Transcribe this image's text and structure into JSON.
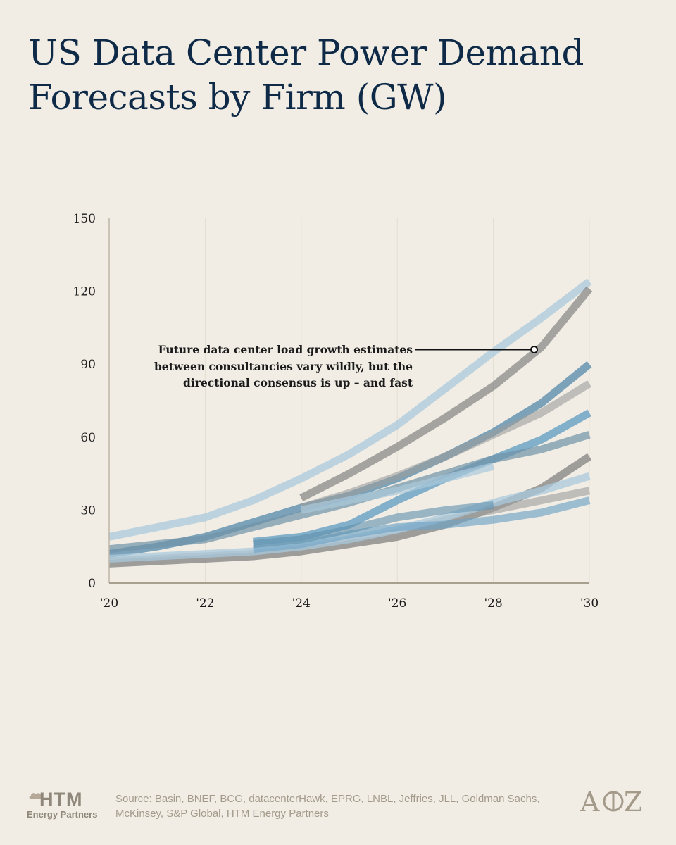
{
  "title": "US Data Center Power Demand Forecasts by Firm (GW)",
  "annotation": [
    "Future data center load growth estimates",
    "between consultancies vary wildly, but the",
    "directional consensus is up – and fast"
  ],
  "footer": {
    "source": "Source: Basin, BNEF, BCG, datacenterHawk, EPRG, LNBL, Jeffries, JLL, Goldman Sachs, McKinsey, S&P Global, HTM Energy Partners",
    "left_logo_word": "HTM",
    "left_logo_sub": "Energy Partners",
    "right_logo": "A16Z"
  },
  "colors": {
    "background": "#f1ede5",
    "title": "#0e2a47",
    "light_blue": "#a9c9dc",
    "mid_blue": "#6fa3c4",
    "steel_blue": "#5f8fae",
    "gray": "#8c8c8c",
    "light_gray": "#b0b0b0"
  },
  "chart_data": {
    "type": "line",
    "title": "US Data Center Power Demand Forecasts by Firm (GW)",
    "xlabel": "",
    "ylabel": "",
    "xlim": [
      2020,
      2030
    ],
    "ylim": [
      0,
      150
    ],
    "x_ticks": [
      2020,
      2022,
      2024,
      2026,
      2028,
      2030
    ],
    "x_tick_labels": [
      "'20",
      "'22",
      "'24",
      "'26",
      "'28",
      "'30"
    ],
    "y_ticks": [
      0,
      30,
      60,
      90,
      120,
      150
    ],
    "y_tick_labels": [
      "0",
      "30",
      "60",
      "90",
      "120",
      "150"
    ],
    "grid": "vertical",
    "series": [
      {
        "color": "#a9c9dc",
        "opacity": 0.75,
        "x": [
          2020,
          2021,
          2022,
          2023,
          2024,
          2025,
          2026,
          2027,
          2028,
          2029,
          2030
        ],
        "y": [
          19,
          23,
          27,
          34,
          43,
          53,
          65,
          80,
          95,
          109,
          124
        ]
      },
      {
        "color": "#7b7b7b",
        "opacity": 0.65,
        "x": [
          2024,
          2025,
          2026,
          2027,
          2028,
          2029,
          2030
        ],
        "y": [
          35,
          45,
          56,
          68,
          81,
          97,
          121
        ]
      },
      {
        "color": "#5f8fae",
        "opacity": 0.8,
        "x": [
          2020,
          2021,
          2022,
          2023,
          2024,
          2025,
          2026,
          2027,
          2028,
          2029,
          2030
        ],
        "y": [
          12,
          15,
          19,
          25,
          31,
          36,
          43,
          52,
          62,
          74,
          90
        ]
      },
      {
        "color": "#9c9c9c",
        "opacity": 0.6,
        "x": [
          2024,
          2025,
          2026,
          2027,
          2028,
          2029,
          2030
        ],
        "y": [
          31,
          37,
          44,
          52,
          61,
          70,
          82
        ]
      },
      {
        "color": "#6fa3c4",
        "opacity": 0.85,
        "x": [
          2023,
          2024,
          2025,
          2026,
          2027,
          2028,
          2029,
          2030
        ],
        "y": [
          17,
          19,
          24,
          34,
          43,
          51,
          59,
          70
        ]
      },
      {
        "color": "#6f93a8",
        "opacity": 0.7,
        "x": [
          2020,
          2021,
          2022,
          2023,
          2024,
          2025,
          2026,
          2027,
          2028,
          2029,
          2030
        ],
        "y": [
          14,
          16,
          18,
          23,
          28,
          33,
          39,
          45,
          51,
          55,
          61
        ]
      },
      {
        "color": "#a9c9dc",
        "opacity": 0.7,
        "x": [
          2024,
          2025,
          2026,
          2027,
          2028
        ],
        "y": [
          30,
          34,
          38,
          43,
          48
        ]
      },
      {
        "color": "#7b7b7b",
        "opacity": 0.7,
        "x": [
          2020,
          2021,
          2022,
          2023,
          2024,
          2025,
          2026,
          2027,
          2028,
          2029,
          2030
        ],
        "y": [
          8,
          9,
          10,
          11,
          13,
          16,
          19,
          24,
          31,
          39,
          52
        ]
      },
      {
        "color": "#9c9c9c",
        "opacity": 0.6,
        "x": [
          2020,
          2021,
          2022,
          2023,
          2024,
          2025,
          2026,
          2027,
          2028,
          2029,
          2030
        ],
        "y": [
          9,
          10,
          11,
          12,
          14,
          17,
          21,
          26,
          30,
          34,
          38
        ]
      },
      {
        "color": "#a9c9dc",
        "opacity": 0.75,
        "x": [
          2020,
          2021,
          2022,
          2023,
          2024,
          2025,
          2026,
          2027,
          2028,
          2029,
          2030
        ],
        "y": [
          10,
          11,
          12,
          13,
          15,
          18,
          22,
          27,
          33,
          38,
          44
        ]
      },
      {
        "color": "#6fa3c4",
        "opacity": 0.65,
        "x": [
          2023,
          2024,
          2025,
          2026,
          2027,
          2028,
          2029,
          2030
        ],
        "y": [
          14,
          16,
          20,
          23,
          24,
          26,
          29,
          34
        ]
      },
      {
        "color": "#5f8fae",
        "opacity": 0.6,
        "x": [
          2023,
          2024,
          2025,
          2026,
          2027,
          2028
        ],
        "y": [
          16,
          18,
          22,
          27,
          30,
          32
        ]
      }
    ],
    "annotation_point": {
      "x": 2028.85,
      "y": 96
    }
  }
}
